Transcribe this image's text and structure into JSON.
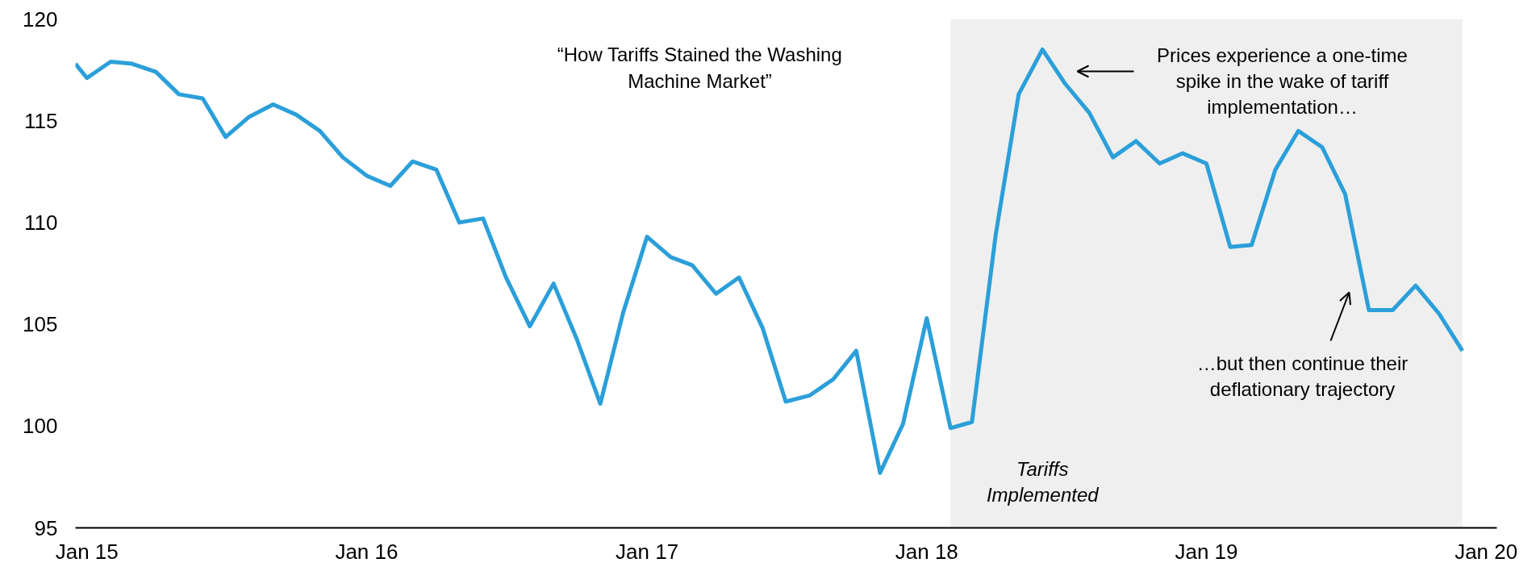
{
  "chart_data": {
    "type": "line",
    "x": [
      "2014-12-17",
      "2015-01",
      "2015-02",
      "2015-03",
      "2015-04",
      "2015-05",
      "2015-06",
      "2015-07",
      "2015-08",
      "2015-09",
      "2015-10",
      "2015-11",
      "2015-12",
      "2016-01",
      "2016-02",
      "2016-03",
      "2016-04",
      "2016-05",
      "2016-06",
      "2016-07",
      "2016-08",
      "2016-09",
      "2016-10",
      "2016-11",
      "2016-12",
      "2017-01",
      "2017-02",
      "2017-03",
      "2017-04",
      "2017-05",
      "2017-06",
      "2017-07",
      "2017-08",
      "2017-09",
      "2017-10",
      "2017-11",
      "2017-12",
      "2018-01",
      "2018-02",
      "2018-03",
      "2018-04",
      "2018-05",
      "2018-06",
      "2018-07",
      "2018-08",
      "2018-09",
      "2018-10",
      "2018-11",
      "2018-12",
      "2019-01",
      "2019-02",
      "2019-03",
      "2019-04",
      "2019-05",
      "2019-06",
      "2019-07",
      "2019-08",
      "2019-09",
      "2019-10",
      "2019-11",
      "2019-12"
    ],
    "series": [
      {
        "color": "#2b9fd9",
        "values": [
          117.8,
          117.1,
          117.9,
          117.8,
          117.4,
          116.3,
          116.1,
          114.2,
          115.2,
          115.8,
          115.3,
          114.5,
          113.2,
          112.3,
          111.8,
          113.0,
          112.6,
          110.0,
          110.2,
          107.3,
          104.9,
          107.0,
          104.3,
          101.1,
          105.6,
          109.3,
          108.3,
          107.9,
          106.5,
          107.3,
          104.8,
          101.2,
          101.5,
          102.3,
          103.7,
          97.7,
          100.1,
          105.3,
          99.9,
          100.2,
          109.4,
          116.3,
          118.5,
          116.8,
          115.4,
          113.2,
          114.0,
          112.9,
          113.4,
          112.9,
          108.8,
          108.9,
          112.6,
          114.5,
          113.7,
          111.4,
          105.7,
          105.7,
          106.9,
          105.5,
          103.7
        ]
      }
    ],
    "xlim": [
      "2014-12-17",
      "2020-01-15"
    ],
    "xticks": [
      {
        "value": "2015-01",
        "label": "Jan 15"
      },
      {
        "value": "2016-01",
        "label": "Jan 16"
      },
      {
        "value": "2017-01",
        "label": "Jan 17"
      },
      {
        "value": "2018-01",
        "label": "Jan 18"
      },
      {
        "value": "2019-01",
        "label": "Jan 19"
      },
      {
        "value": "2020-01",
        "label": "Jan 20"
      }
    ],
    "ylim": [
      95,
      120
    ],
    "yticks": [
      95,
      100,
      105,
      110,
      115,
      120
    ],
    "grid": false,
    "bands": [
      {
        "axis": "x",
        "from": "2018-02",
        "to": "2019-12",
        "label": "Tariffs\nImplemented",
        "color": "#efefef"
      }
    ],
    "annotations": [
      "“How Tariffs Stained the Washing\nMachine Market”",
      "Prices experience a one-time\nspike in the wake of tariff\nimplementation…",
      "…but then continue their\ndeflationary trajectory"
    ]
  }
}
